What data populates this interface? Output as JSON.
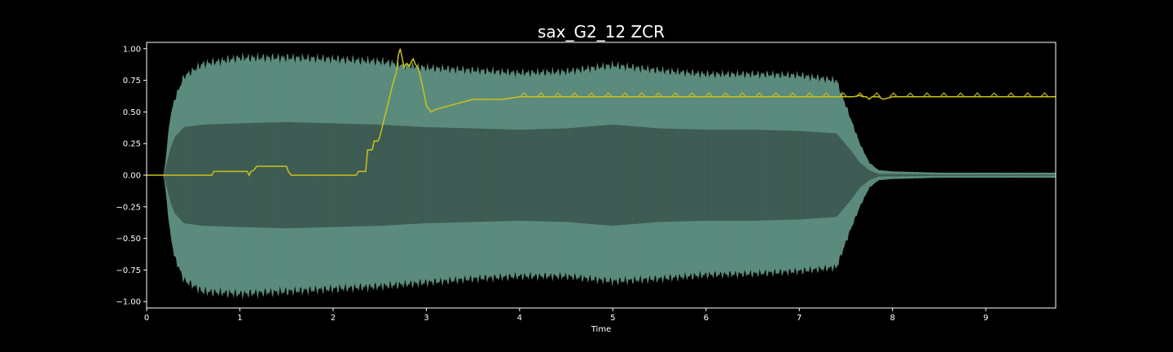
{
  "chart_data": {
    "type": "line",
    "title": "sax_G2_12 ZCR",
    "xlabel": "Time",
    "ylabel": "",
    "xlim": [
      0,
      9.75
    ],
    "ylim": [
      -1.05,
      1.05
    ],
    "x_ticks": [
      0,
      1,
      2,
      3,
      4,
      5,
      6,
      7,
      8,
      9
    ],
    "x_tick_labels": [
      "0",
      "1",
      "2",
      "3",
      "4",
      "5",
      "6",
      "7",
      "8",
      "9"
    ],
    "y_ticks": [
      1.0,
      0.75,
      0.5,
      0.25,
      0.0,
      -0.25,
      -0.5,
      -0.75,
      -1.0
    ],
    "y_tick_labels": [
      "1.00",
      "0.75",
      "0.50",
      "0.25",
      "0.00",
      "−0.25",
      "−0.50",
      "−0.75",
      "−1.00"
    ],
    "grid": false,
    "colors": {
      "background": "#000000",
      "waveform": "#5a8a7c",
      "waveform_inner": "#3b5850",
      "zcr_line": "#c9c21a",
      "axes": "#ffffff"
    },
    "series": [
      {
        "kind": "waveform-envelope",
        "x": [
          0,
          0.18,
          0.2,
          0.25,
          0.3,
          0.4,
          0.6,
          1.0,
          1.5,
          2.0,
          2.5,
          3.0,
          3.5,
          4.0,
          4.5,
          5.0,
          5.5,
          6.0,
          6.5,
          7.0,
          7.4,
          7.55,
          7.65,
          7.75,
          7.85,
          8.0,
          8.5,
          9.0,
          9.75
        ],
        "upper": [
          0,
          0.0,
          0.1,
          0.45,
          0.6,
          0.78,
          0.88,
          0.93,
          0.93,
          0.92,
          0.9,
          0.85,
          0.83,
          0.81,
          0.82,
          0.87,
          0.83,
          0.8,
          0.8,
          0.79,
          0.75,
          0.45,
          0.25,
          0.1,
          0.04,
          0.03,
          0.02,
          0.02,
          0.02
        ],
        "lower": [
          0,
          0.0,
          -0.1,
          -0.45,
          -0.65,
          -0.83,
          -0.92,
          -0.94,
          -0.92,
          -0.9,
          -0.88,
          -0.85,
          -0.82,
          -0.8,
          -0.8,
          -0.84,
          -0.82,
          -0.79,
          -0.78,
          -0.76,
          -0.73,
          -0.43,
          -0.25,
          -0.1,
          -0.04,
          -0.03,
          -0.02,
          -0.02,
          -0.02
        ],
        "inner": [
          0,
          0.0,
          0.05,
          0.2,
          0.3,
          0.38,
          0.4,
          0.41,
          0.42,
          0.41,
          0.4,
          0.38,
          0.37,
          0.36,
          0.37,
          0.4,
          0.37,
          0.36,
          0.36,
          0.35,
          0.33,
          0.2,
          0.1,
          0.04,
          0.01,
          0.01,
          0.005,
          0.005,
          0.005
        ]
      },
      {
        "kind": "zcr",
        "x": [
          0,
          0.2,
          0.7,
          0.72,
          1.08,
          1.1,
          1.12,
          1.15,
          1.18,
          1.2,
          1.5,
          1.52,
          1.55,
          2.25,
          2.27,
          2.35,
          2.37,
          2.42,
          2.44,
          2.48,
          2.5,
          2.55,
          2.6,
          2.64,
          2.68,
          2.7,
          2.72,
          2.74,
          2.76,
          2.78,
          2.8,
          2.82,
          2.84,
          2.86,
          2.88,
          2.9,
          2.92,
          2.96,
          3.0,
          3.05,
          3.1,
          3.15,
          3.3,
          3.45,
          3.5,
          3.8,
          3.82,
          4.0,
          4.1,
          4.5,
          5.0,
          6.0,
          7.0,
          7.5,
          7.55,
          7.58,
          7.65,
          7.68,
          7.72,
          7.75,
          7.78,
          7.85,
          7.9,
          8.0,
          8.05,
          8.3,
          8.5,
          9.0,
          9.5,
          9.75
        ],
        "y": [
          0,
          0,
          0,
          0.03,
          0.03,
          0.0,
          0.03,
          0.04,
          0.07,
          0.07,
          0.07,
          0.03,
          0.0,
          0.0,
          0.03,
          0.03,
          0.2,
          0.2,
          0.27,
          0.27,
          0.3,
          0.45,
          0.6,
          0.72,
          0.82,
          0.95,
          1.0,
          0.93,
          0.85,
          0.88,
          0.88,
          0.86,
          0.9,
          0.92,
          0.88,
          0.86,
          0.83,
          0.7,
          0.55,
          0.5,
          0.52,
          0.53,
          0.56,
          0.59,
          0.6,
          0.6,
          0.6,
          0.62,
          0.62,
          0.62,
          0.62,
          0.62,
          0.62,
          0.62,
          0.62,
          0.62,
          0.63,
          0.62,
          0.62,
          0.6,
          0.62,
          0.62,
          0.6,
          0.62,
          0.62,
          0.62,
          0.62,
          0.62,
          0.62,
          0.62
        ]
      }
    ]
  }
}
